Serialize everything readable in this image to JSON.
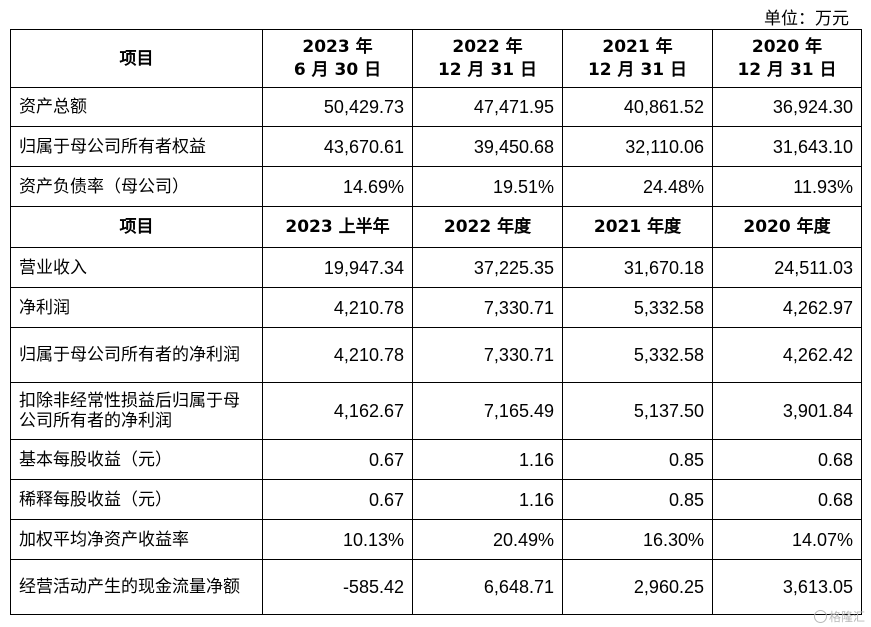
{
  "unit_label": "单位：万元",
  "header1": {
    "item": "项目",
    "cols": [
      {
        "line1": "2023 年",
        "line2": "6 月 30 日"
      },
      {
        "line1": "2022 年",
        "line2": "12 月 31 日"
      },
      {
        "line1": "2021 年",
        "line2": "12 月 31 日"
      },
      {
        "line1": "2020 年",
        "line2": "12 月 31 日"
      }
    ]
  },
  "balance_rows": [
    {
      "label": "资产总额",
      "values": [
        "50,429.73",
        "47,471.95",
        "40,861.52",
        "36,924.30"
      ]
    },
    {
      "label": "归属于母公司所有者权益",
      "values": [
        "43,670.61",
        "39,450.68",
        "32,110.06",
        "31,643.10"
      ]
    },
    {
      "label": "资产负债率（母公司）",
      "values": [
        "14.69%",
        "19.51%",
        "24.48%",
        "11.93%"
      ]
    }
  ],
  "header2": {
    "item": "项目",
    "cols": [
      "2023 上半年",
      "2022 年度",
      "2021 年度",
      "2020 年度"
    ]
  },
  "income_rows": [
    {
      "label": "营业收入",
      "values": [
        "19,947.34",
        "37,225.35",
        "31,670.18",
        "24,511.03"
      ]
    },
    {
      "label": "净利润",
      "values": [
        "4,210.78",
        "7,330.71",
        "5,332.58",
        "4,262.97"
      ]
    },
    {
      "label": "归属于母公司所有者的净利润",
      "values": [
        "4,210.78",
        "7,330.71",
        "5,332.58",
        "4,262.42"
      ]
    },
    {
      "label": "扣除非经常性损益后归属于母公司所有者的净利润",
      "values": [
        "4,162.67",
        "7,165.49",
        "5,137.50",
        "3,901.84"
      ]
    },
    {
      "label": "基本每股收益（元）",
      "values": [
        "0.67",
        "1.16",
        "0.85",
        "0.68"
      ]
    },
    {
      "label": "稀释每股收益（元）",
      "values": [
        "0.67",
        "1.16",
        "0.85",
        "0.68"
      ]
    },
    {
      "label": "加权平均净资产收益率",
      "values": [
        "10.13%",
        "20.49%",
        "16.30%",
        "14.07%"
      ]
    },
    {
      "label": "经营活动产生的现金流量净额",
      "values": [
        "-585.42",
        "6,648.71",
        "2,960.25",
        "3,613.05"
      ]
    }
  ],
  "watermark": "格隆汇"
}
